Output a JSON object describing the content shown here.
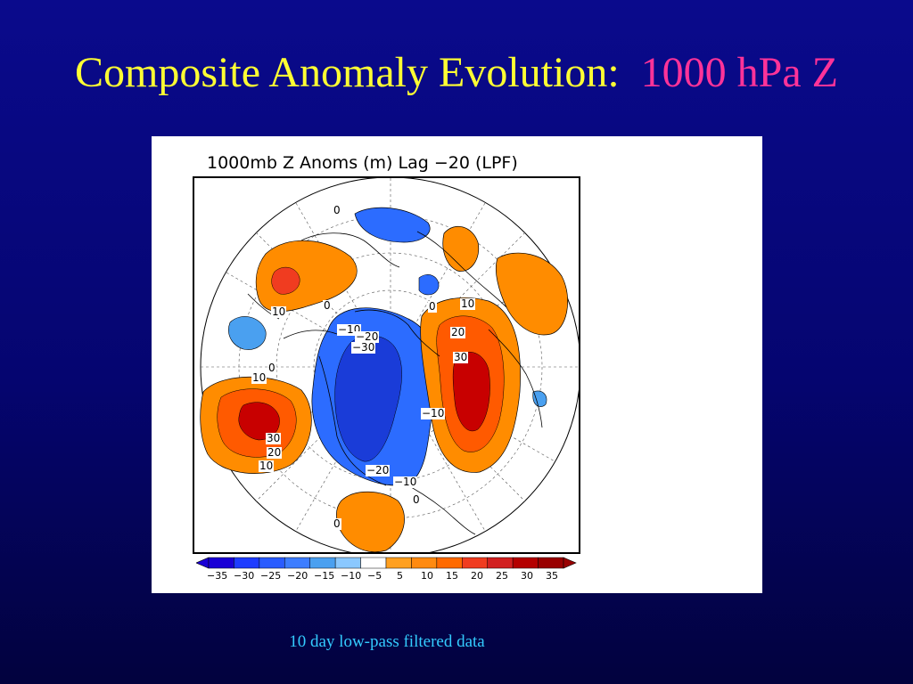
{
  "slide": {
    "title": "Composite Anomaly Evolution:",
    "title_accent": "1000 hPa Z",
    "caption": "10 day low-pass filtered data"
  },
  "figure": {
    "title": "1000mb Z Anoms (m) Lag −20 (LPF)",
    "colorbar": {
      "ticks": [
        "−35",
        "−30",
        "−25",
        "−20",
        "−15",
        "−10",
        "−5",
        "5",
        "10",
        "15",
        "20",
        "25",
        "30",
        "35"
      ],
      "colors": [
        "#1a00d6",
        "#1e3cff",
        "#2a5cff",
        "#3d7dff",
        "#4aa0f0",
        "#8ac8ff",
        "#ffffff",
        "#ffa020",
        "#ff8a10",
        "#ff6a00",
        "#f03c20",
        "#d22020",
        "#b40000",
        "#990000"
      ]
    },
    "contour_labels": {
      "l0a": "0",
      "l10a": "10",
      "l0b": "0",
      "l0c": "0",
      "l10b": "10",
      "lm10a": "−10",
      "lm20a": "−20",
      "lm30a": "−30",
      "l20a": "20",
      "l30a": "30",
      "l10c": "10",
      "l0d": "0",
      "lm10b": "−10",
      "l30b": "30",
      "l20b": "20",
      "l10d": "10",
      "lm20b": "−20",
      "lm10c": "−10",
      "l0e": "0",
      "l0f": "0"
    },
    "anomaly_centers": [
      {
        "sign": "negative",
        "label": "−30"
      },
      {
        "sign": "positive",
        "label": "30"
      },
      {
        "sign": "positive",
        "label": "30"
      }
    ],
    "colors": {
      "positive": "#ff8c00",
      "strong_positive": "#c80000",
      "negative": "#2c6cff",
      "strong_negative": "#1a3cd8"
    }
  }
}
